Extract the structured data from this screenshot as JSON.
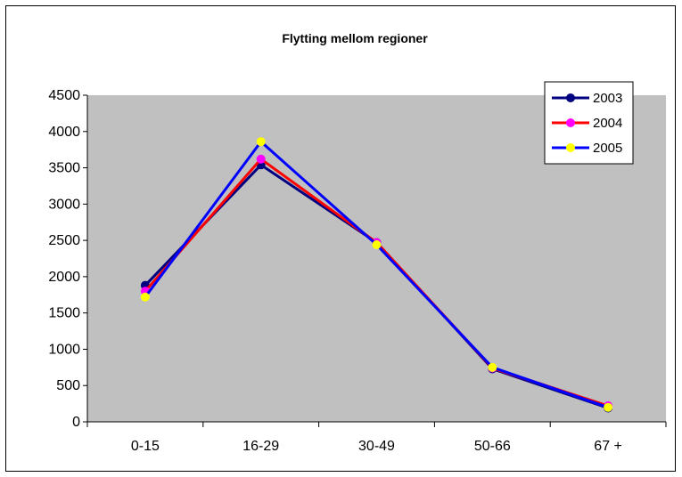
{
  "chart_data": {
    "type": "line",
    "title": "Flytting mellom regioner",
    "xlabel": "",
    "ylabel": "",
    "categories": [
      "0-15",
      "16-29",
      "30-49",
      "50-66",
      "67 +"
    ],
    "ylim": [
      0,
      4500
    ],
    "yticks": [
      0,
      500,
      1000,
      1500,
      2000,
      2500,
      3000,
      3500,
      4000,
      4500
    ],
    "grid": false,
    "plot_background": "#C0C0C0",
    "legend_position": "top-right",
    "series": [
      {
        "name": "2003",
        "values": [
          1880,
          3540,
          2470,
          730,
          190
        ],
        "line_color": "#000080",
        "marker_color": "#000080"
      },
      {
        "name": "2004",
        "values": [
          1800,
          3620,
          2470,
          740,
          220
        ],
        "line_color": "#FF0000",
        "marker_color": "#FF00FF"
      },
      {
        "name": "2005",
        "values": [
          1720,
          3860,
          2440,
          750,
          200
        ],
        "line_color": "#0000FF",
        "marker_color": "#FFFF00"
      }
    ]
  }
}
